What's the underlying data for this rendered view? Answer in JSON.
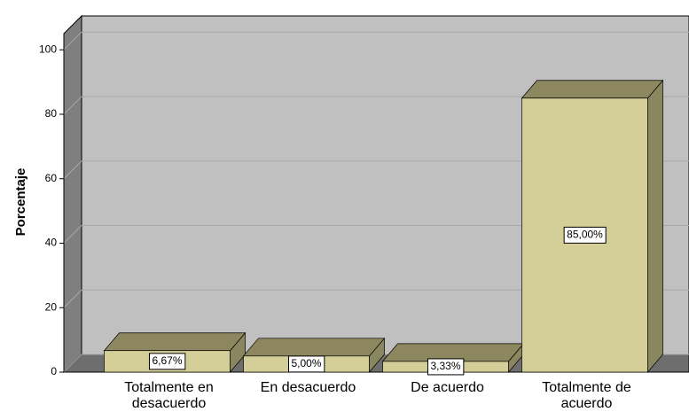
{
  "chart_data": {
    "type": "bar3d",
    "categories": [
      "Totalmente en desacuerdo",
      "En desacuerdo",
      "De acuerdo",
      "Totalmente de acuerdo"
    ],
    "values": [
      6.67,
      5.0,
      3.33,
      85.0
    ],
    "value_labels": [
      "6,67%",
      "5,00%",
      "3,33%",
      "85,00%"
    ],
    "ylabel": "Porcentaje",
    "color": "#d4cf98",
    "ylim": [
      0,
      105
    ],
    "yticks": [
      0,
      20,
      40,
      60,
      80,
      100
    ],
    "grid": true
  }
}
